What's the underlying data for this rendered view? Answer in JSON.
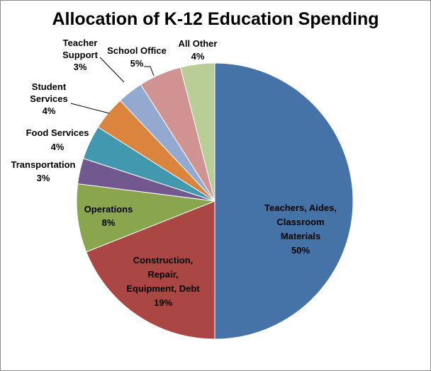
{
  "chart_data": {
    "type": "pie",
    "title": "Allocation of K-12 Education Spending",
    "slices": [
      {
        "lines": [
          "Teachers, Aides,",
          "Classroom",
          "Materials",
          "50%"
        ],
        "value": 50,
        "color": "#4572A7"
      },
      {
        "lines": [
          "Construction,",
          "Repair,",
          "Equipment, Debt",
          "19%"
        ],
        "value": 19,
        "color": "#AA4643"
      },
      {
        "lines": [
          "Operations",
          "8%"
        ],
        "value": 8,
        "color": "#89A54E"
      },
      {
        "lines": [
          "Transportation",
          "3%"
        ],
        "value": 3,
        "color": "#71588F"
      },
      {
        "lines": [
          "Food Services",
          "4%"
        ],
        "value": 4,
        "color": "#4198AF"
      },
      {
        "lines": [
          "Student",
          "Services",
          "4%"
        ],
        "value": 4,
        "color": "#DB843D"
      },
      {
        "lines": [
          "Teacher",
          "Support",
          "3%"
        ],
        "value": 3,
        "color": "#93A9CF"
      },
      {
        "lines": [
          "School Office",
          "5%"
        ],
        "value": 5,
        "color": "#D19392"
      },
      {
        "lines": [
          "All Other",
          "4%"
        ],
        "value": 4,
        "color": "#B9CD96"
      }
    ]
  }
}
